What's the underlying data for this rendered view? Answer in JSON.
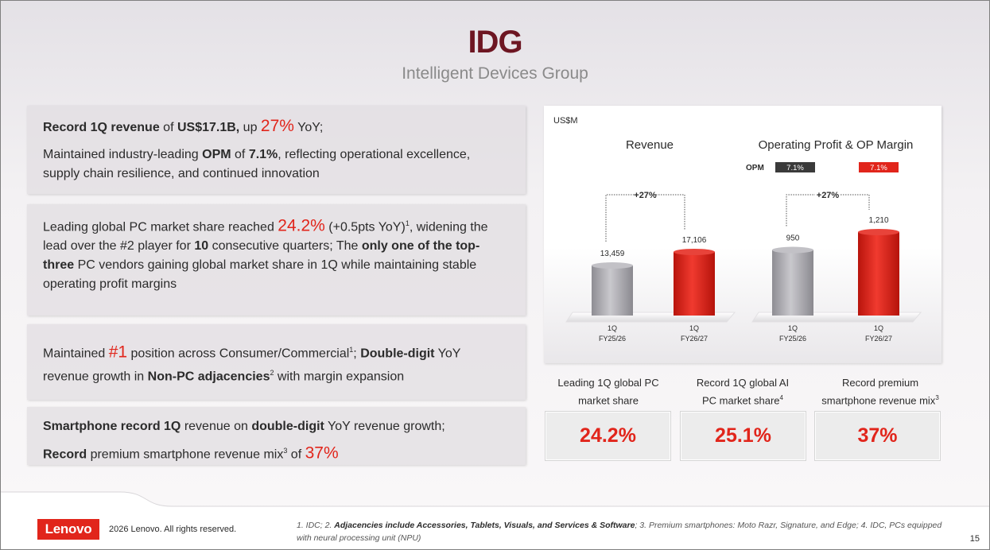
{
  "header": {
    "title": "IDG",
    "subtitle": "Intelligent Devices Group"
  },
  "boxes": {
    "b1": {
      "l1_a": "Record 1Q revenue",
      "l1_b": " of ",
      "l1_c": "US$17.1B,",
      "l1_d": " up ",
      "l1_e": "27%",
      "l1_f": " YoY;",
      "l2_a": "Maintained industry-leading ",
      "l2_b": "OPM",
      "l2_c": " of ",
      "l2_d": "7.1%",
      "l2_e": ", reflecting operational excellence, supply chain resilience, and continued innovation"
    },
    "b2": {
      "a": "Leading global PC market share reached ",
      "b": "24.2%",
      "c": " (+0.5pts YoY)",
      "sup": "1",
      "d": ", widening the lead over the #2 player for ",
      "e": "10",
      "f": " consecutive quarters; The ",
      "g": "only one of the top-three",
      "h": " PC vendors gaining global market share in 1Q while maintaining stable operating profit margins"
    },
    "b3": {
      "a": "Maintained ",
      "b": "#1",
      "c": " position across Consumer/Commercial",
      "sup1": "1",
      "d": "; ",
      "e": "Double-digit",
      "f": " YoY revenue growth in ",
      "g": "Non-PC adjacencies",
      "sup2": "2",
      "h": " with margin expansion"
    },
    "b4": {
      "a": "Smartphone record 1Q",
      "b": " revenue on ",
      "c": "double-digit",
      "d": " YoY revenue growth;",
      "e": "Record",
      "f": " premium smartphone revenue mix",
      "sup": "3",
      "g": " of ",
      "h": "37%"
    }
  },
  "chart_data": [
    {
      "type": "bar",
      "title": "Revenue",
      "unit": "US$M",
      "categories": [
        "1Q FY25/26",
        "1Q FY26/27"
      ],
      "values": [
        13459,
        17106
      ],
      "value_labels": [
        "13,459",
        "17,106"
      ],
      "colors": [
        "#a9a8ad",
        "#e1251b"
      ],
      "growth_label": "+27%"
    },
    {
      "type": "bar",
      "title": "Operating Profit & OP Margin",
      "unit": "US$M",
      "categories": [
        "1Q FY25/26",
        "1Q FY26/27"
      ],
      "values": [
        950,
        1210
      ],
      "value_labels": [
        "950",
        "1,210"
      ],
      "colors": [
        "#a9a8ad",
        "#e1251b"
      ],
      "growth_label": "+27%",
      "opm_label": "OPM",
      "opm": [
        "7.1%",
        "7.1%"
      ],
      "opm_colors": [
        "#3a3a3a",
        "#e1251b"
      ]
    }
  ],
  "chart_text": {
    "unit": "US$M",
    "x_top": [
      "1Q",
      "1Q",
      "1Q",
      "1Q"
    ],
    "x_bottom": [
      "FY25/26",
      "FY26/27",
      "FY25/26",
      "FY26/27"
    ]
  },
  "kpis": [
    {
      "label_l1": "Leading 1Q global PC",
      "label_l2": "market share",
      "sup": "",
      "value": "24.2%"
    },
    {
      "label_l1": "Record 1Q global AI",
      "label_l2": "PC market share",
      "sup": "4",
      "value": "25.1%"
    },
    {
      "label_l1": "Record premium",
      "label_l2": "smartphone revenue mix",
      "sup": "3",
      "value": "37%"
    }
  ],
  "footer": {
    "logo": "Lenovo",
    "copyright": "2026 Lenovo. All rights reserved.",
    "fn1": "1. IDC; 2. ",
    "fn2": "Adjacencies include Accessories, Tablets, Visuals, and Services & Software",
    "fn3": "; 3. ",
    "fn4": "Premium smartphones: Moto Razr, Signature, and Edge; 4. IDC, PCs equipped with neural processing unit (NPU)",
    "page": "15"
  },
  "colors": {
    "accent_red": "#e1251b",
    "title_maroon": "#6d1622",
    "bar_grey": "#a9a8ad"
  }
}
